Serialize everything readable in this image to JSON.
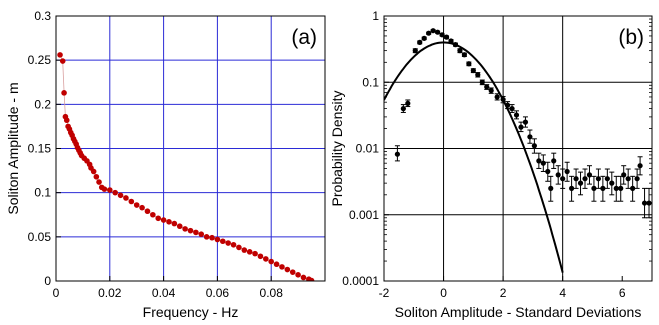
{
  "chart_data": [
    {
      "type": "scatter",
      "panel_label": "(a)",
      "xlabel": "Frequency - Hz",
      "ylabel": "Soliton Amplitude - m",
      "xlim": [
        0,
        0.1
      ],
      "ylim": [
        0,
        0.3
      ],
      "x_ticks": [
        0,
        0.02,
        0.04,
        0.06,
        0.08,
        0.1
      ],
      "x_tick_labels": [
        "0",
        "0.02",
        "0.04",
        "0.06",
        "0.08",
        ""
      ],
      "y_ticks": [
        0,
        0.05,
        0.1,
        0.15,
        0.2,
        0.25,
        0.3
      ],
      "y_tick_labels": [
        "0",
        "0.05",
        "0.1",
        "0.15",
        "0.2",
        "0.25",
        "0.3"
      ],
      "grid": true,
      "grid_color": "#2b2bd6",
      "marker_color": "#c00000",
      "series": [
        {
          "connected": true,
          "points": [
            [
              0.0015,
              0.256
            ],
            [
              0.0025,
              0.249
            ],
            [
              0.003,
              0.213
            ],
            [
              0.0035,
              0.186
            ],
            [
              0.004,
              0.182
            ],
            [
              0.0045,
              0.175
            ],
            [
              0.005,
              0.172
            ],
            [
              0.0055,
              0.168
            ],
            [
              0.006,
              0.165
            ],
            [
              0.0065,
              0.161
            ],
            [
              0.007,
              0.158
            ],
            [
              0.0075,
              0.155
            ],
            [
              0.008,
              0.151
            ],
            [
              0.0085,
              0.148
            ],
            [
              0.009,
              0.145
            ],
            [
              0.0095,
              0.142
            ],
            [
              0.0105,
              0.139
            ],
            [
              0.0115,
              0.136
            ],
            [
              0.0125,
              0.132
            ],
            [
              0.013,
              0.128
            ],
            [
              0.014,
              0.124
            ],
            [
              0.015,
              0.118
            ],
            [
              0.016,
              0.112
            ],
            [
              0.017,
              0.106
            ],
            [
              0.018,
              0.104
            ],
            [
              0.02,
              0.103
            ],
            [
              0.022,
              0.1
            ],
            [
              0.024,
              0.097
            ],
            [
              0.026,
              0.094
            ],
            [
              0.028,
              0.09
            ],
            [
              0.03,
              0.086
            ],
            [
              0.032,
              0.083
            ],
            [
              0.034,
              0.079
            ],
            [
              0.036,
              0.075
            ],
            [
              0.038,
              0.071
            ],
            [
              0.04,
              0.069
            ],
            [
              0.042,
              0.067
            ],
            [
              0.044,
              0.065
            ],
            [
              0.046,
              0.062
            ],
            [
              0.048,
              0.059
            ],
            [
              0.05,
              0.057
            ],
            [
              0.052,
              0.055
            ],
            [
              0.054,
              0.053
            ],
            [
              0.056,
              0.05
            ],
            [
              0.058,
              0.049
            ],
            [
              0.06,
              0.047
            ],
            [
              0.062,
              0.045
            ],
            [
              0.064,
              0.043
            ],
            [
              0.066,
              0.041
            ],
            [
              0.068,
              0.038
            ],
            [
              0.07,
              0.035
            ],
            [
              0.072,
              0.033
            ],
            [
              0.074,
              0.031
            ],
            [
              0.076,
              0.028
            ],
            [
              0.078,
              0.025
            ],
            [
              0.08,
              0.022
            ],
            [
              0.082,
              0.019
            ],
            [
              0.084,
              0.016
            ],
            [
              0.086,
              0.013
            ],
            [
              0.088,
              0.01
            ],
            [
              0.09,
              0.007
            ],
            [
              0.092,
              0.004
            ],
            [
              0.094,
              0.002
            ],
            [
              0.095,
              0.0005
            ]
          ]
        }
      ]
    },
    {
      "type": "scatter",
      "panel_label": "(b)",
      "xlabel": "Soliton Amplitude - Standard Deviations",
      "ylabel": "Probability Density",
      "xlim": [
        -2,
        7
      ],
      "ylim": [
        0.0001,
        1
      ],
      "yscale": "log",
      "x_ticks": [
        -2,
        0,
        2,
        4,
        6
      ],
      "x_tick_labels": [
        "-2",
        "0",
        "2",
        "4",
        "6"
      ],
      "y_ticks": [
        0.0001,
        0.001,
        0.01,
        0.1,
        1
      ],
      "y_tick_labels": [
        "0.0001",
        "0.001",
        "0.01",
        "0.1",
        "1"
      ],
      "grid": true,
      "grid_color": "#000000",
      "marker_color": "#000000",
      "series": [
        {
          "style": "points-with-error-bars",
          "points": [
            [
              -1.55,
              0.0082,
              0.0065,
              0.011
            ],
            [
              -1.35,
              0.04,
              0.035,
              0.046
            ],
            [
              -1.2,
              0.048,
              0.043,
              0.054
            ],
            [
              -0.95,
              0.3,
              0.28,
              0.32
            ],
            [
              -0.8,
              0.4,
              0.38,
              0.42
            ],
            [
              -0.65,
              0.46,
              0.44,
              0.48
            ],
            [
              -0.5,
              0.55,
              0.53,
              0.57
            ],
            [
              -0.35,
              0.6,
              0.58,
              0.62
            ],
            [
              -0.2,
              0.57,
              0.55,
              0.59
            ],
            [
              -0.05,
              0.52,
              0.5,
              0.54
            ],
            [
              0.1,
              0.48,
              0.46,
              0.5
            ],
            [
              0.25,
              0.42,
              0.4,
              0.44
            ],
            [
              0.4,
              0.37,
              0.35,
              0.39
            ],
            [
              0.55,
              0.3,
              0.28,
              0.32
            ],
            [
              0.7,
              0.26,
              0.245,
              0.275
            ],
            [
              0.85,
              0.19,
              0.178,
              0.202
            ],
            [
              1.0,
              0.15,
              0.14,
              0.16
            ],
            [
              1.15,
              0.13,
              0.12,
              0.14
            ],
            [
              1.3,
              0.1,
              0.092,
              0.108
            ],
            [
              1.45,
              0.085,
              0.078,
              0.092
            ],
            [
              1.6,
              0.075,
              0.068,
              0.082
            ],
            [
              1.8,
              0.06,
              0.054,
              0.067
            ],
            [
              2.0,
              0.055,
              0.049,
              0.061
            ],
            [
              2.15,
              0.045,
              0.04,
              0.051
            ],
            [
              2.3,
              0.04,
              0.035,
              0.046
            ],
            [
              2.45,
              0.032,
              0.028,
              0.037
            ],
            [
              2.6,
              0.021,
              0.018,
              0.025
            ],
            [
              2.75,
              0.025,
              0.021,
              0.03
            ],
            [
              2.9,
              0.015,
              0.012,
              0.019
            ],
            [
              3.05,
              0.011,
              0.0085,
              0.014
            ],
            [
              3.2,
              0.0065,
              0.005,
              0.0085
            ],
            [
              3.35,
              0.006,
              0.0045,
              0.008
            ],
            [
              3.5,
              0.0045,
              0.0032,
              0.0062
            ],
            [
              3.6,
              0.0025,
              0.0016,
              0.0038
            ],
            [
              3.7,
              0.0065,
              0.005,
              0.0085
            ],
            [
              3.85,
              0.004,
              0.0029,
              0.0055
            ],
            [
              4.0,
              0.0035,
              0.0025,
              0.0049
            ],
            [
              4.15,
              0.0045,
              0.0032,
              0.0062
            ],
            [
              4.3,
              0.0025,
              0.0016,
              0.0038
            ],
            [
              4.45,
              0.0035,
              0.0025,
              0.0049
            ],
            [
              4.6,
              0.003,
              0.002,
              0.0044
            ],
            [
              4.75,
              0.0035,
              0.0025,
              0.0049
            ],
            [
              4.9,
              0.004,
              0.0029,
              0.0055
            ],
            [
              5.05,
              0.0025,
              0.0016,
              0.0038
            ],
            [
              5.2,
              0.0035,
              0.0025,
              0.0049
            ],
            [
              5.35,
              0.0025,
              0.0016,
              0.0038
            ],
            [
              5.5,
              0.0035,
              0.0025,
              0.0049
            ],
            [
              5.65,
              0.003,
              0.002,
              0.0044
            ],
            [
              5.8,
              0.0025,
              0.0016,
              0.0038
            ],
            [
              5.95,
              0.0025,
              0.0016,
              0.0038
            ],
            [
              6.05,
              0.004,
              0.0029,
              0.0055
            ],
            [
              6.2,
              0.0035,
              0.0025,
              0.0049
            ],
            [
              6.35,
              0.0025,
              0.0016,
              0.0038
            ],
            [
              6.5,
              0.0035,
              0.0025,
              0.0049
            ],
            [
              6.6,
              0.0055,
              0.004,
              0.0075
            ],
            [
              6.75,
              0.0015,
              0.0009,
              0.0025
            ],
            [
              6.9,
              0.0015,
              0.0009,
              0.0025
            ]
          ]
        },
        {
          "style": "line",
          "curve": "gaussian",
          "points": [
            [
              -2.0,
              0.054
            ],
            [
              -1.5,
              0.13
            ],
            [
              -1.0,
              0.242
            ],
            [
              -0.5,
              0.352
            ],
            [
              0.0,
              0.399
            ],
            [
              0.5,
              0.352
            ],
            [
              1.0,
              0.242
            ],
            [
              1.5,
              0.13
            ],
            [
              2.0,
              0.054
            ],
            [
              2.5,
              0.0175
            ],
            [
              3.0,
              0.00443
            ],
            [
              3.5,
              0.000873
            ],
            [
              4.0,
              0.000134
            ]
          ]
        }
      ]
    }
  ]
}
